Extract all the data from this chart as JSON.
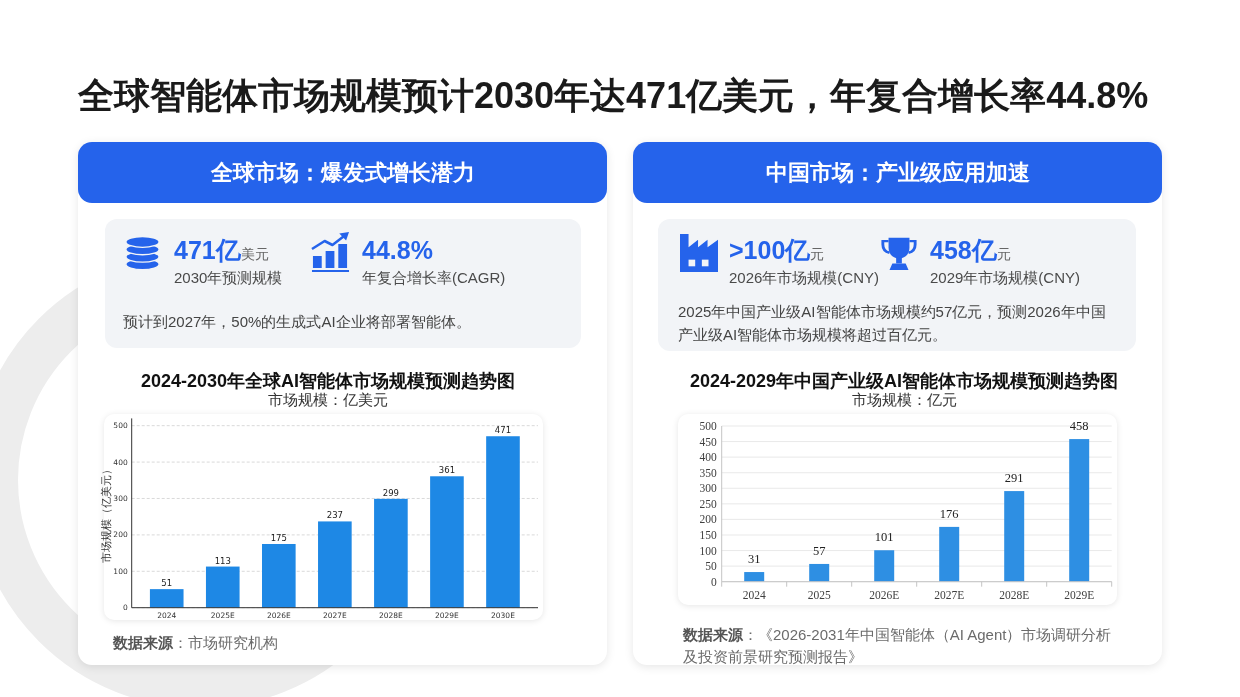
{
  "chart_data": [
    {
      "type": "other",
      "title": "全球智能体市场规模预计2030年达471亿美元，年复合增长率44.8%"
    },
    {
      "type": "other",
      "title": "全球市场：爆发式增长潜力",
      "annotations": [
        "471亿",
        "美元",
        "2030年预测规模",
        "44.8%",
        "年复合增长率(CAGR)",
        "预计到2027年，50%的生成式AI企业将部署智能体。"
      ]
    },
    {
      "type": "bar",
      "title": "2024-2030年全球AI智能体市场规模预测趋势图",
      "subtitle": "市场规模：亿美元",
      "ylabel": "市场规模（亿美元）",
      "categories": [
        "2024",
        "2025E",
        "2026E",
        "2027E",
        "2028E",
        "2029E",
        "2030E"
      ],
      "values": [
        51,
        113,
        175,
        237,
        299,
        361,
        471
      ],
      "color": "#1e88e5",
      "ylim": [
        0,
        520
      ],
      "yticks": [
        0,
        100,
        200,
        300,
        400,
        500
      ],
      "grid": "y",
      "data_labels": true,
      "annotations": [
        "**数据来源**：市场研究机构"
      ]
    },
    {
      "type": "other",
      "title": "中国市场：产业级应用加速",
      "annotations": [
        ">100亿",
        "元",
        "2026年市场规模(CNY)",
        "458亿",
        "元",
        "2029年市场规模(CNY)",
        "2025年中国产业级AI智能体市场规模约57亿元，预测2026年中国产业级AI智能体市场规模将超过百亿元。"
      ]
    },
    {
      "type": "bar",
      "title": "2024-2029年中国产业级AI智能体市场规模预测趋势图",
      "subtitle": "市场规模：亿元",
      "categories": [
        "2024",
        "2025",
        "2026E",
        "2027E",
        "2028E",
        "2029E"
      ],
      "values": [
        31,
        57,
        101,
        176,
        291,
        458
      ],
      "color": "#2e8fe3",
      "ylim": [
        0,
        500
      ],
      "yticks": [
        0,
        50,
        100,
        150,
        200,
        250,
        300,
        350,
        400,
        450,
        500
      ],
      "grid": "y",
      "data_labels": true,
      "annotations": [
        "**数据来源**：《2026-2031年中国智能体（AI Agent）市场调研分析及投资前景研究预测报告》"
      ]
    }
  ]
}
